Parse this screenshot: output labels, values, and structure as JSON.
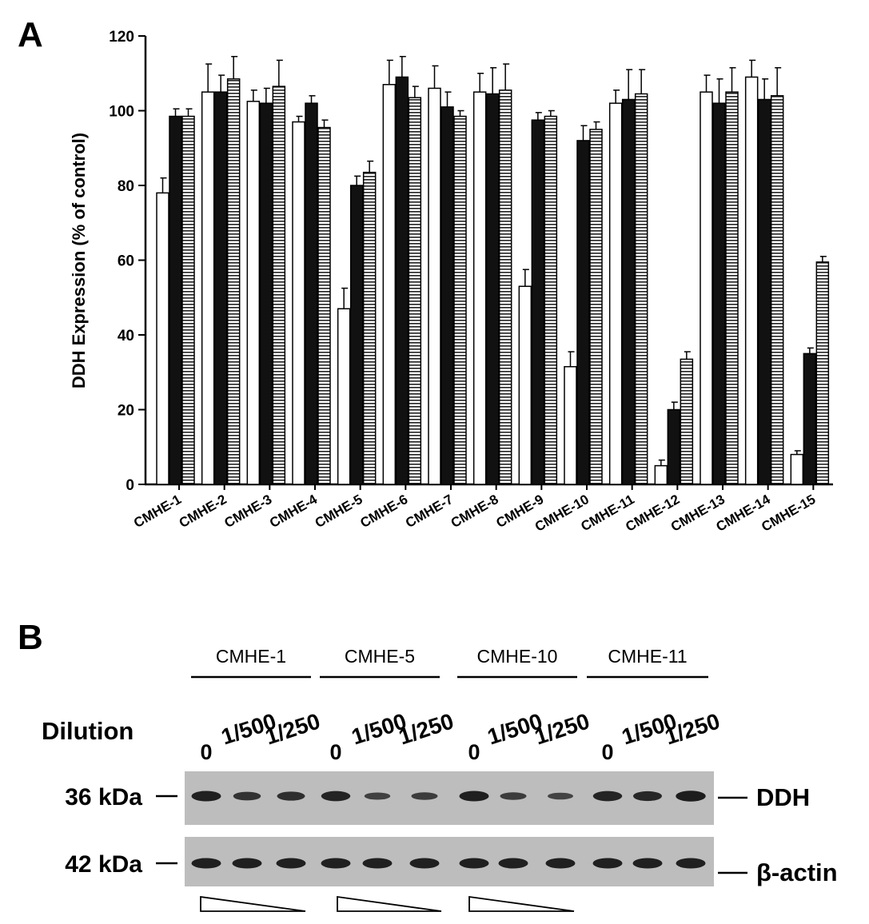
{
  "panel_a_label": "A",
  "panel_b_label": "B",
  "chart_data": {
    "type": "bar",
    "title": "",
    "xlabel": "",
    "ylabel": "DDH Expression (% of control)",
    "ylim": [
      0,
      120
    ],
    "yticks": [
      0,
      20,
      40,
      60,
      80,
      100,
      120
    ],
    "grid": false,
    "categories": [
      "CMHE-1",
      "CMHE-2",
      "CMHE-3",
      "CMHE-4",
      "CMHE-5",
      "CMHE-6",
      "CMHE-7",
      "CMHE-8",
      "CMHE-9",
      "CMHE-10",
      "CMHE-11",
      "CMHE-12",
      "CMHE-13",
      "CMHE-14",
      "CMHE-15"
    ],
    "series": [
      {
        "fill": "white",
        "values": [
          78,
          105,
          102.5,
          97,
          47,
          107,
          106,
          105,
          53,
          31.5,
          102,
          5,
          105,
          109,
          8
        ],
        "errors": [
          4,
          7.5,
          3,
          1.5,
          5.5,
          6.5,
          6,
          5,
          4.5,
          4,
          3.5,
          1.5,
          4.5,
          4.5,
          1
        ]
      },
      {
        "fill": "black",
        "values": [
          98.5,
          105,
          102,
          102,
          80,
          109,
          101,
          104.5,
          97.5,
          92,
          103,
          20,
          102,
          103,
          35
        ],
        "errors": [
          2,
          4.5,
          4,
          2,
          2.5,
          5.5,
          4,
          7,
          2,
          4,
          8,
          2,
          6.5,
          5.5,
          1.5
        ]
      },
      {
        "fill": "horizontal-stripes",
        "values": [
          98.5,
          108.5,
          106.5,
          95.5,
          83.5,
          103.5,
          98.5,
          105.5,
          98.5,
          95,
          104.5,
          33.5,
          105,
          104,
          59.5
        ],
        "errors": [
          2,
          6,
          7,
          2,
          3,
          3,
          1.5,
          7,
          1.5,
          2,
          6.5,
          2,
          6.5,
          7.5,
          1.5
        ]
      }
    ]
  },
  "blot": {
    "groups": [
      "CMHE-1",
      "CMHE-5",
      "CMHE-10",
      "CMHE-11"
    ],
    "dilution_label": "Dilution",
    "lane_labels": [
      "0",
      "1/500",
      "1/250"
    ],
    "bands": [
      {
        "size": "36 kDa",
        "name": "DDH",
        "intensities": [
          0.9,
          0.65,
          0.7,
          0.85,
          0.45,
          0.5,
          0.9,
          0.5,
          0.4,
          0.85,
          0.8,
          0.95
        ]
      },
      {
        "size": "42 kDa",
        "name": "β-actin",
        "intensities": [
          0.9,
          0.9,
          0.9,
          0.9,
          0.9,
          0.9,
          0.9,
          0.9,
          0.9,
          0.9,
          0.9,
          0.9
        ]
      }
    ]
  }
}
